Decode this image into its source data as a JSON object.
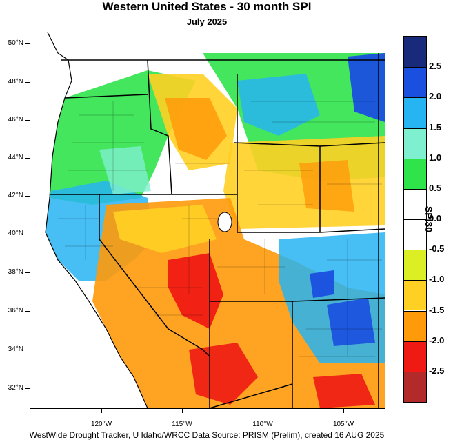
{
  "title": "Western United States - 30 month SPI",
  "subtitle": "July 2025",
  "footer": "WestWide Drought Tracker, U Idaho/WRCC Data Source: PRISM (Prelim), created 16 AUG 2025",
  "map": {
    "latitude_labels": [
      "50°N",
      "48°N",
      "46°N",
      "44°N",
      "42°N",
      "40°N",
      "38°N",
      "36°N",
      "34°N",
      "32°N"
    ],
    "longitude_labels": [
      "120°W",
      "115°W",
      "110°W",
      "105°W"
    ]
  },
  "colorbar": {
    "title": "SPI30",
    "tick_labels": [
      "2.5",
      "2.0",
      "1.5",
      "1.0",
      "0.5",
      "0.0",
      "-0.5",
      "-1.0",
      "-1.5",
      "-2.0",
      "-2.5"
    ],
    "colors": [
      "#1a2a7a",
      "#1a4fe0",
      "#27b4f2",
      "#7ff0cf",
      "#2fe34a",
      "#ffffff",
      "#ffffff",
      "#dcef25",
      "#ffd024",
      "#ff9a0a",
      "#f01a14",
      "#b22a2a"
    ]
  },
  "regions": [
    {
      "id": "pnw-wet",
      "color": "#2fe34a"
    },
    {
      "id": "coast-wet",
      "color": "#27b4f2"
    },
    {
      "id": "southwest-dry",
      "color": "#ff9a0a"
    },
    {
      "id": "southwest-extreme",
      "color": "#f01a14"
    },
    {
      "id": "montana-wet",
      "color": "#1a4fe0"
    },
    {
      "id": "colorado-wet",
      "color": "#1a4fe0"
    },
    {
      "id": "plains-dry",
      "color": "#ffd024"
    }
  ]
}
